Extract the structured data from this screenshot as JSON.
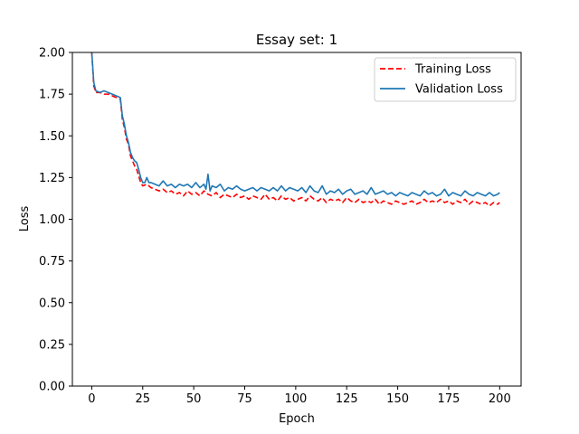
{
  "chart_data": {
    "type": "line",
    "title": "Essay set: 1",
    "xlabel": "Epoch",
    "ylabel": "Loss",
    "xlim": [
      -9.5,
      210.5
    ],
    "ylim": [
      0.0,
      2.0
    ],
    "xticks": [
      0,
      25,
      50,
      75,
      100,
      125,
      150,
      175,
      200
    ],
    "xtick_labels": [
      "0",
      "25",
      "50",
      "75",
      "100",
      "125",
      "150",
      "175",
      "200"
    ],
    "yticks": [
      0.0,
      0.25,
      0.5,
      0.75,
      1.0,
      1.25,
      1.5,
      1.75,
      2.0
    ],
    "ytick_labels": [
      "0.00",
      "0.25",
      "0.50",
      "0.75",
      "1.00",
      "1.25",
      "1.50",
      "1.75",
      "2.00"
    ],
    "grid": false,
    "legend_position": "top-right",
    "series": [
      {
        "name": "Training Loss",
        "color": "#ff0000",
        "style": "dashed",
        "x": [
          0,
          1,
          2,
          4,
          6,
          8,
          10,
          12,
          14,
          15,
          16,
          17,
          18,
          19,
          20,
          21,
          22,
          23,
          24,
          25,
          27,
          29,
          31,
          33,
          35,
          37,
          39,
          41,
          43,
          45,
          47,
          49,
          51,
          53,
          55,
          57,
          59,
          61,
          63,
          65,
          67,
          69,
          71,
          73,
          75,
          77,
          79,
          81,
          83,
          85,
          87,
          89,
          91,
          93,
          95,
          97,
          99,
          101,
          103,
          105,
          107,
          109,
          111,
          113,
          115,
          117,
          119,
          121,
          123,
          125,
          127,
          129,
          131,
          133,
          135,
          137,
          139,
          141,
          143,
          145,
          147,
          149,
          151,
          153,
          155,
          157,
          159,
          161,
          163,
          165,
          167,
          169,
          171,
          173,
          175,
          177,
          179,
          181,
          183,
          185,
          187,
          189,
          191,
          193,
          195,
          197,
          199,
          200
        ],
        "y": [
          2.0,
          1.8,
          1.76,
          1.76,
          1.75,
          1.75,
          1.74,
          1.73,
          1.72,
          1.6,
          1.55,
          1.48,
          1.45,
          1.38,
          1.35,
          1.32,
          1.3,
          1.26,
          1.22,
          1.2,
          1.21,
          1.19,
          1.18,
          1.17,
          1.18,
          1.16,
          1.17,
          1.15,
          1.16,
          1.14,
          1.17,
          1.15,
          1.16,
          1.14,
          1.17,
          1.15,
          1.14,
          1.16,
          1.13,
          1.15,
          1.14,
          1.13,
          1.15,
          1.13,
          1.14,
          1.12,
          1.14,
          1.13,
          1.12,
          1.15,
          1.12,
          1.13,
          1.11,
          1.14,
          1.12,
          1.13,
          1.11,
          1.12,
          1.13,
          1.11,
          1.14,
          1.12,
          1.11,
          1.13,
          1.1,
          1.12,
          1.11,
          1.12,
          1.1,
          1.13,
          1.11,
          1.1,
          1.12,
          1.1,
          1.11,
          1.1,
          1.12,
          1.09,
          1.11,
          1.1,
          1.09,
          1.11,
          1.1,
          1.09,
          1.1,
          1.11,
          1.09,
          1.1,
          1.12,
          1.1,
          1.11,
          1.1,
          1.12,
          1.1,
          1.11,
          1.09,
          1.11,
          1.1,
          1.12,
          1.09,
          1.11,
          1.1,
          1.09,
          1.1,
          1.08,
          1.1,
          1.09,
          1.1
        ]
      },
      {
        "name": "Validation Loss",
        "color": "#1f77b4",
        "style": "solid",
        "x": [
          0,
          1,
          2,
          4,
          6,
          8,
          10,
          12,
          14,
          15,
          16,
          17,
          18,
          19,
          20,
          21,
          22,
          23,
          24,
          25,
          26,
          27,
          28,
          29,
          31,
          33,
          35,
          37,
          39,
          41,
          43,
          45,
          47,
          49,
          51,
          53,
          55,
          56,
          57,
          58,
          59,
          61,
          63,
          65,
          67,
          69,
          71,
          73,
          75,
          77,
          79,
          81,
          83,
          85,
          87,
          89,
          91,
          93,
          95,
          97,
          99,
          101,
          103,
          105,
          107,
          109,
          111,
          113,
          115,
          117,
          119,
          121,
          123,
          125,
          127,
          129,
          131,
          133,
          135,
          137,
          139,
          141,
          143,
          145,
          147,
          149,
          151,
          153,
          155,
          157,
          159,
          161,
          163,
          165,
          167,
          169,
          171,
          173,
          175,
          177,
          179,
          181,
          183,
          185,
          187,
          189,
          191,
          193,
          195,
          197,
          199,
          200
        ],
        "y": [
          2.0,
          1.82,
          1.77,
          1.76,
          1.77,
          1.76,
          1.75,
          1.74,
          1.73,
          1.62,
          1.57,
          1.5,
          1.46,
          1.4,
          1.37,
          1.35,
          1.34,
          1.3,
          1.25,
          1.22,
          1.22,
          1.25,
          1.22,
          1.22,
          1.21,
          1.2,
          1.23,
          1.2,
          1.21,
          1.19,
          1.21,
          1.2,
          1.21,
          1.19,
          1.22,
          1.19,
          1.21,
          1.18,
          1.27,
          1.17,
          1.2,
          1.19,
          1.21,
          1.17,
          1.19,
          1.18,
          1.2,
          1.18,
          1.17,
          1.18,
          1.19,
          1.17,
          1.19,
          1.18,
          1.17,
          1.19,
          1.17,
          1.2,
          1.17,
          1.19,
          1.18,
          1.17,
          1.19,
          1.16,
          1.2,
          1.17,
          1.16,
          1.2,
          1.15,
          1.17,
          1.16,
          1.18,
          1.15,
          1.17,
          1.18,
          1.15,
          1.16,
          1.17,
          1.15,
          1.19,
          1.15,
          1.16,
          1.17,
          1.15,
          1.16,
          1.14,
          1.16,
          1.15,
          1.14,
          1.16,
          1.15,
          1.14,
          1.17,
          1.15,
          1.16,
          1.14,
          1.15,
          1.18,
          1.14,
          1.16,
          1.15,
          1.14,
          1.17,
          1.15,
          1.14,
          1.16,
          1.15,
          1.14,
          1.16,
          1.14,
          1.15,
          1.16
        ]
      }
    ]
  }
}
